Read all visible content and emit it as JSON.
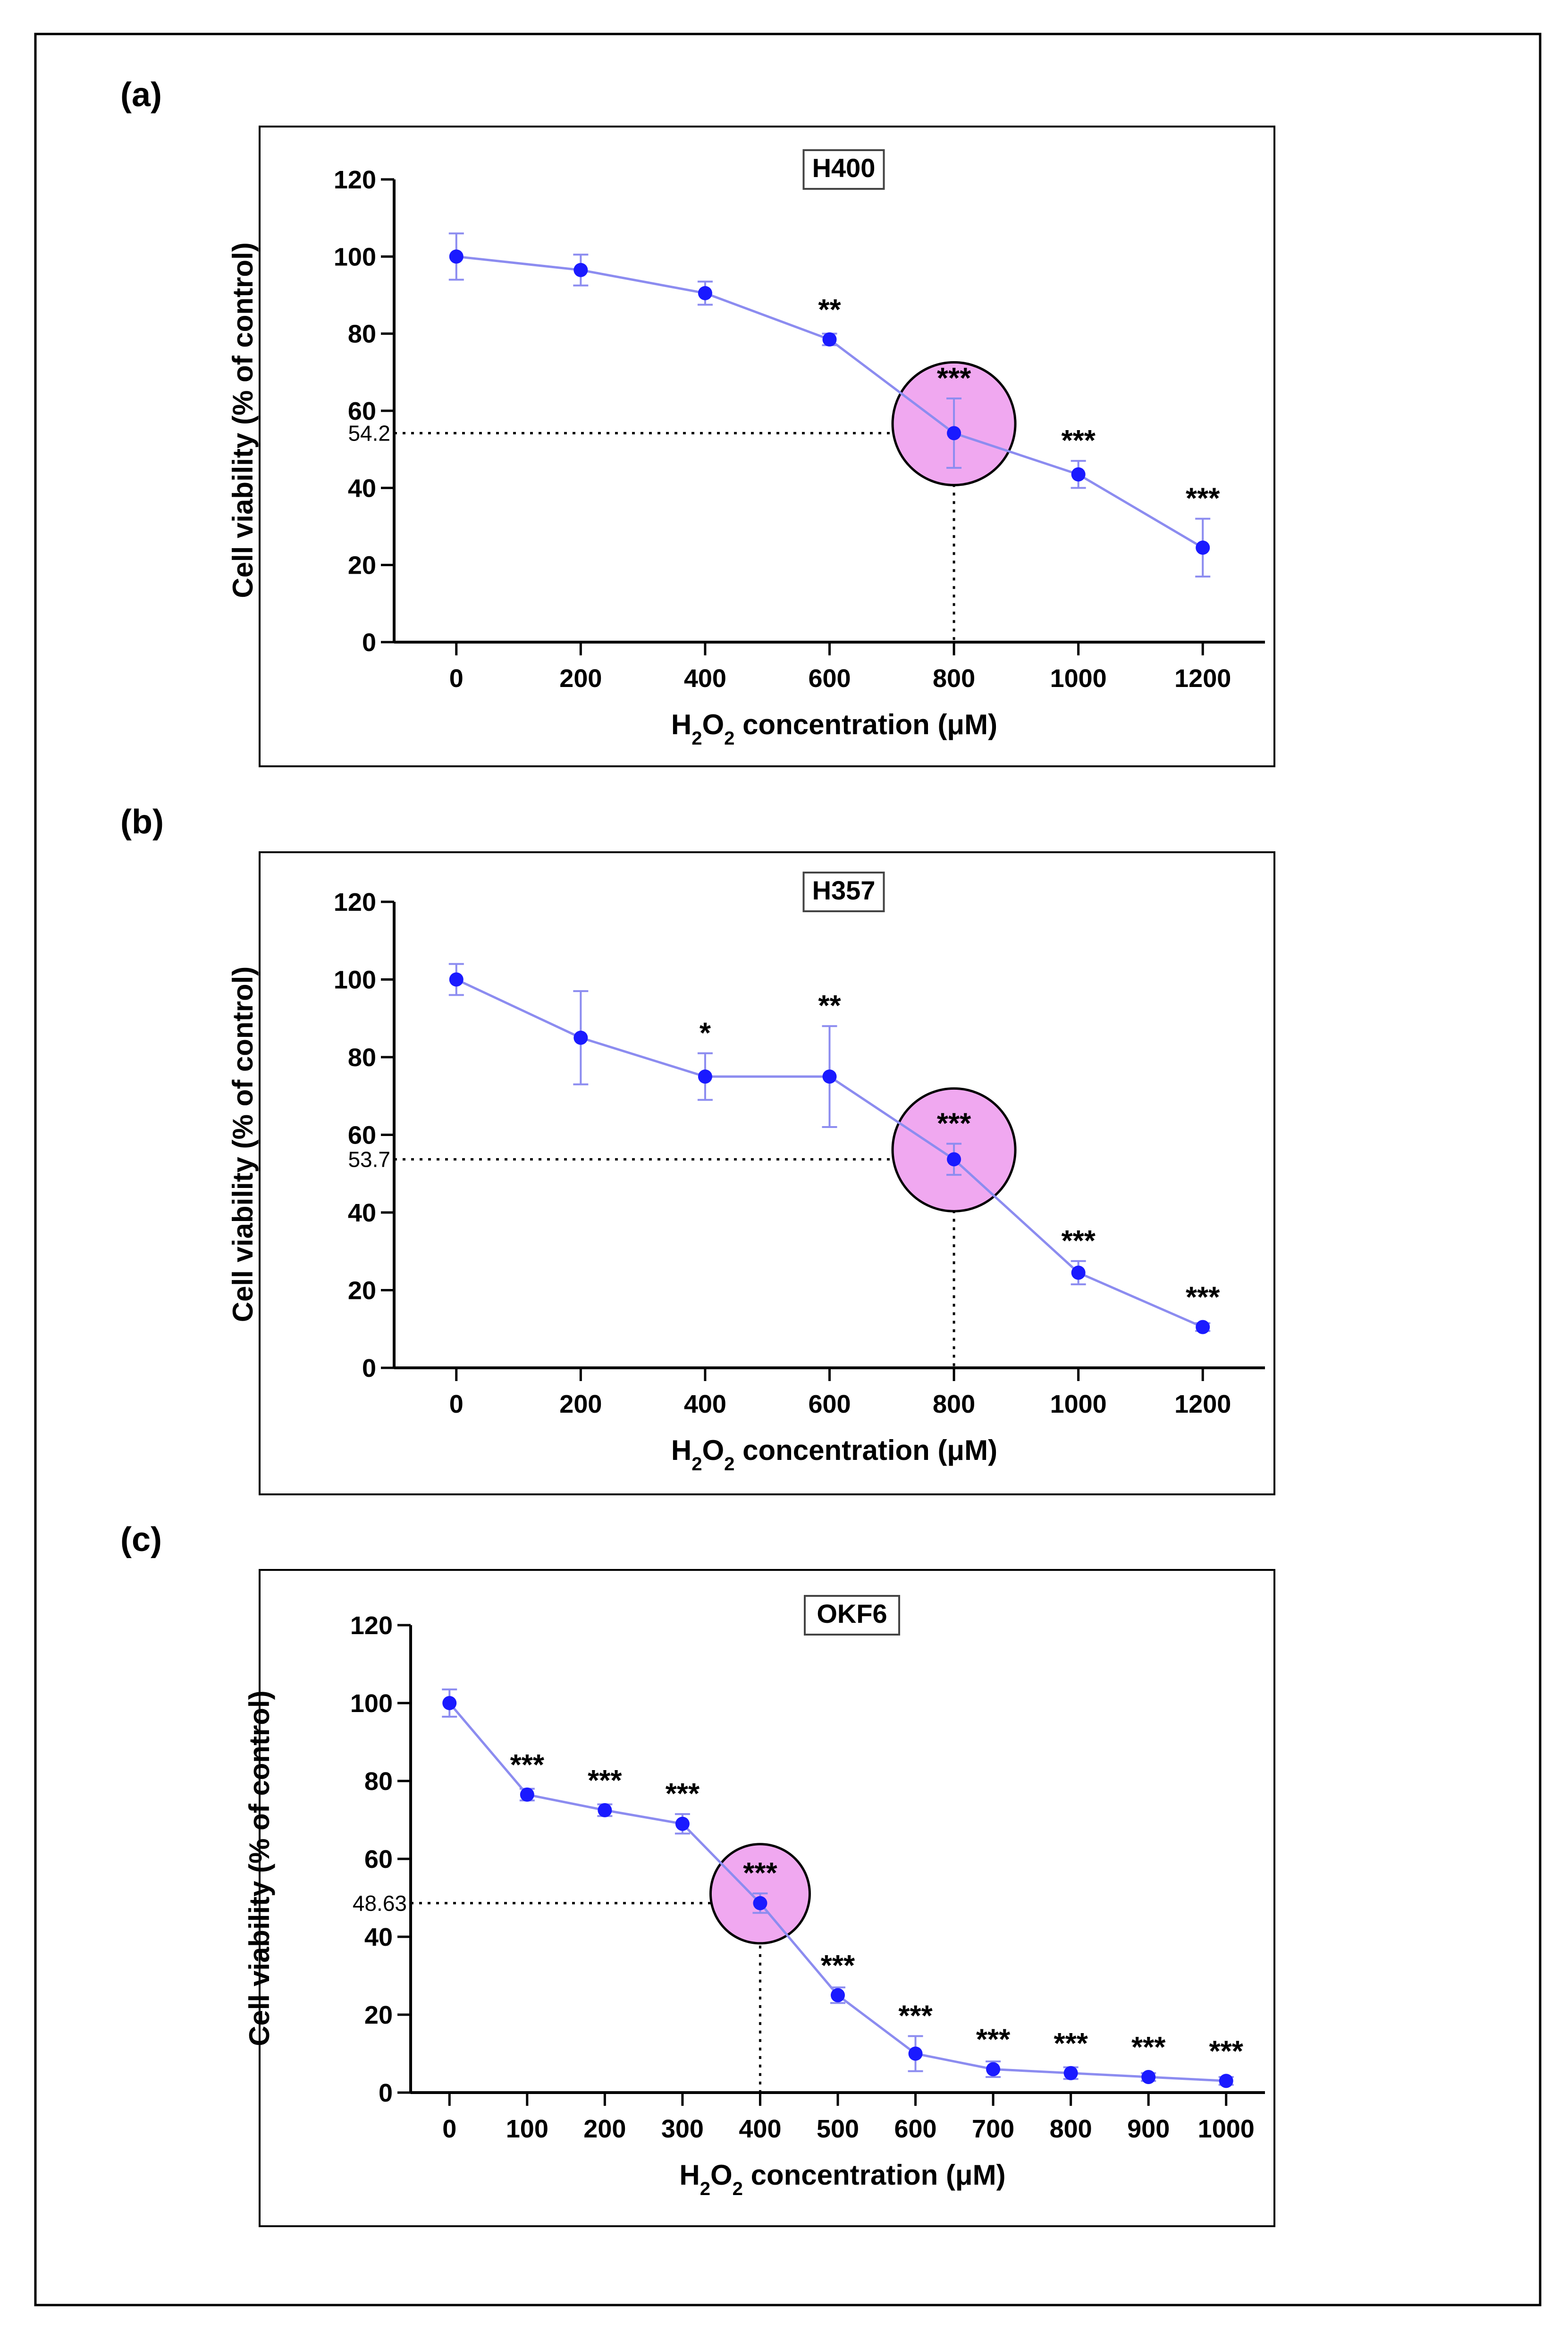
{
  "colors": {
    "series_line": "#8c8cf0",
    "series_point": "#1a1aff",
    "highlight_fill": "#f0a8f0",
    "axis": "#000000",
    "frame": "#000000"
  },
  "chart_data": [
    {
      "type": "line",
      "panel_label": "(a)",
      "title": "H400",
      "xlabel": "H2O2 concentration (μM)",
      "ylabel": "Cell viability (% of control)",
      "xlim": [
        -100,
        1300
      ],
      "ylim": [
        0,
        120
      ],
      "xticks": [
        0,
        200,
        400,
        600,
        800,
        1000,
        1200
      ],
      "yticks": [
        0,
        20,
        40,
        60,
        80,
        100,
        120
      ],
      "series": [
        {
          "name": "H400",
          "x": [
            0,
            200,
            400,
            600,
            800,
            1000,
            1200
          ],
          "y": [
            100,
            96.5,
            90.5,
            78.5,
            54.2,
            43.5,
            24.5
          ],
          "error": [
            6,
            4,
            3,
            1.5,
            9,
            3.5,
            7.5
          ],
          "significance": [
            "",
            "",
            "",
            "**",
            "***",
            "***",
            "***"
          ]
        }
      ],
      "highlight": {
        "x": 800,
        "y": 54.2,
        "label": "54.2"
      }
    },
    {
      "type": "line",
      "panel_label": "(b)",
      "title": "H357",
      "xlabel": "H2O2 concentration (μM)",
      "ylabel": "Cell viability (% of control)",
      "xlim": [
        -100,
        1300
      ],
      "ylim": [
        0,
        120
      ],
      "xticks": [
        0,
        200,
        400,
        600,
        800,
        1000,
        1200
      ],
      "yticks": [
        0,
        20,
        40,
        60,
        80,
        100,
        120
      ],
      "series": [
        {
          "name": "H357",
          "x": [
            0,
            200,
            400,
            600,
            800,
            1000,
            1200
          ],
          "y": [
            100,
            85,
            75,
            75,
            53.7,
            24.5,
            10.5
          ],
          "error": [
            4,
            12,
            6,
            13,
            4,
            3,
            1
          ],
          "significance": [
            "",
            "",
            "*",
            "**",
            "***",
            "***",
            "***"
          ]
        }
      ],
      "highlight": {
        "x": 800,
        "y": 53.7,
        "label": "53.7"
      }
    },
    {
      "type": "line",
      "panel_label": "(c)",
      "title": "OKF6",
      "xlabel": "H2O2 concentration (μM)",
      "ylabel": "Cell viability (% of control)",
      "xlim": [
        -50,
        1050
      ],
      "ylim": [
        0,
        120
      ],
      "xticks": [
        0,
        100,
        200,
        300,
        400,
        500,
        600,
        700,
        800,
        900,
        1000
      ],
      "yticks": [
        0,
        20,
        40,
        60,
        80,
        100,
        120
      ],
      "series": [
        {
          "name": "OKF6",
          "x": [
            0,
            100,
            200,
            300,
            400,
            500,
            600,
            700,
            800,
            900,
            1000
          ],
          "y": [
            100,
            76.5,
            72.5,
            69,
            48.63,
            25,
            10,
            6,
            5,
            4,
            3
          ],
          "error": [
            3.5,
            1.5,
            1.5,
            2.5,
            2.5,
            2,
            4.5,
            2,
            1.5,
            1,
            1
          ],
          "significance": [
            "",
            "***",
            "***",
            "***",
            "***",
            "***",
            "***",
            "***",
            "***",
            "***",
            "***"
          ]
        }
      ],
      "highlight": {
        "x": 400,
        "y": 48.63,
        "label": "48.63"
      }
    }
  ]
}
